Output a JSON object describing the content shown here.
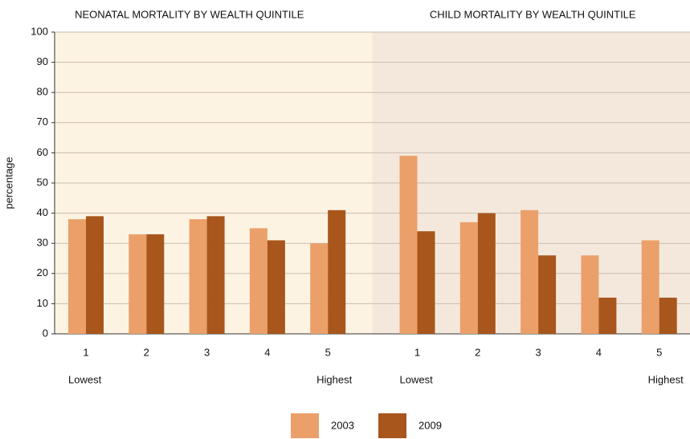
{
  "chart_data": {
    "type": "bar",
    "ylabel": "percentage",
    "ylim": [
      0,
      100
    ],
    "yticks": [
      0,
      10,
      20,
      30,
      40,
      50,
      60,
      70,
      80,
      90,
      100
    ],
    "grid": true,
    "categories": [
      "1",
      "2",
      "3",
      "4",
      "5"
    ],
    "category_notes": [
      "Lowest",
      null,
      null,
      null,
      "Highest"
    ],
    "series": [
      {
        "name": "2003",
        "color": "#eba06a"
      },
      {
        "name": "2009",
        "color": "#a8561c"
      }
    ],
    "panels": [
      {
        "title": "NEONATAL MORTALITY BY WEALTH QUINTILE",
        "background": "#fdf3e3",
        "values": [
          [
            38,
            33,
            38,
            35,
            30
          ],
          [
            39,
            33,
            39,
            31,
            41
          ]
        ]
      },
      {
        "title": "CHILD MORTALITY BY WEALTH QUINTILE",
        "background": "#f4e8dd",
        "values": [
          [
            59,
            37,
            41,
            26,
            31
          ],
          [
            34,
            40,
            26,
            12,
            12
          ]
        ]
      }
    ],
    "legend": "bottom"
  }
}
